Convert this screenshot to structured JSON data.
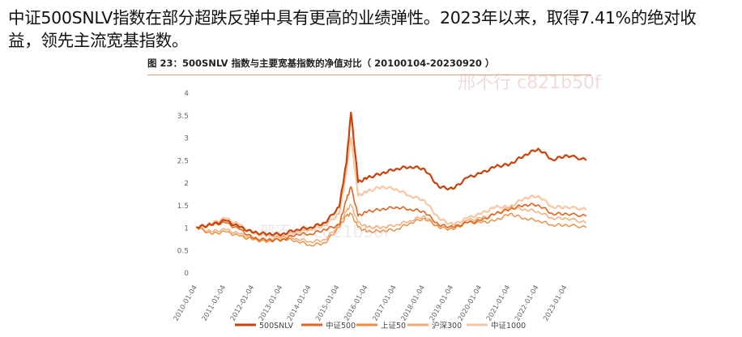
{
  "header": {
    "line1": "中证500SNLV指数在部分超跌反弹中具有更高的业绩弹性。2023年以来，取得7.41%的绝对收",
    "line2": "益，领先主流宽基指数。"
  },
  "chart_data": {
    "type": "line",
    "title": "图 23：500SNLV 指数与主要宽基指数的净值对比（ 20100104-20230920 ）",
    "ylim": [
      0,
      4
    ],
    "yticks": [
      "0",
      "0.5",
      "1",
      "1.5",
      "2",
      "2.5",
      "3",
      "3.5",
      "4"
    ],
    "xticks": [
      "2010-01-04",
      "2011-01-04",
      "2012-01-04",
      "2013-01-04",
      "2014-01-04",
      "2015-01-04",
      "2016-01-04",
      "2017-01-04",
      "2018-01-04",
      "2019-01-04",
      "2020-01-04",
      "2021-01-04",
      "2022-01-04",
      "2023-01-04"
    ],
    "x": [
      "2010-01",
      "2010-07",
      "2011-01",
      "2011-07",
      "2012-01",
      "2012-07",
      "2013-01",
      "2013-07",
      "2014-01",
      "2014-07",
      "2015-01",
      "2015-04",
      "2015-06",
      "2015-09",
      "2016-01",
      "2016-07",
      "2017-01",
      "2017-07",
      "2018-01",
      "2018-07",
      "2019-01",
      "2019-07",
      "2020-01",
      "2020-07",
      "2021-01",
      "2021-07",
      "2022-01",
      "2022-07",
      "2023-01",
      "2023-09"
    ],
    "legend_position": "bottom",
    "series": [
      {
        "name": "500SNLV",
        "color": "#c8420a",
        "width": 2.2,
        "values": [
          1.0,
          1.05,
          1.15,
          1.0,
          0.88,
          0.85,
          0.85,
          0.95,
          1.0,
          1.1,
          1.45,
          2.4,
          3.55,
          2.0,
          2.1,
          2.2,
          2.3,
          2.35,
          2.3,
          1.9,
          1.85,
          2.1,
          2.2,
          2.35,
          2.4,
          2.6,
          2.75,
          2.5,
          2.6,
          2.5
        ]
      },
      {
        "name": "中证500",
        "color": "#e0651e",
        "width": 1.6,
        "values": [
          1.0,
          1.05,
          1.1,
          0.95,
          0.75,
          0.72,
          0.72,
          0.85,
          0.85,
          0.95,
          1.05,
          1.6,
          1.9,
          1.25,
          1.35,
          1.4,
          1.45,
          1.4,
          1.35,
          1.05,
          1.0,
          1.1,
          1.15,
          1.3,
          1.4,
          1.5,
          1.5,
          1.3,
          1.3,
          1.25
        ]
      },
      {
        "name": "上证50",
        "color": "#ef8a3c",
        "width": 1.4,
        "values": [
          1.0,
          0.85,
          0.9,
          0.8,
          0.72,
          0.68,
          0.75,
          0.7,
          0.6,
          0.65,
          1.0,
          1.25,
          1.3,
          1.0,
          0.9,
          0.92,
          0.95,
          1.1,
          1.2,
          1.0,
          0.95,
          1.1,
          1.1,
          1.15,
          1.3,
          1.2,
          1.15,
          1.05,
          1.05,
          1.0
        ]
      },
      {
        "name": "沪深300",
        "color": "#f4a970",
        "width": 1.4,
        "values": [
          1.0,
          0.9,
          0.95,
          0.85,
          0.75,
          0.72,
          0.8,
          0.75,
          0.68,
          0.72,
          1.05,
          1.35,
          1.5,
          1.1,
          1.0,
          1.0,
          1.05,
          1.15,
          1.25,
          1.0,
          0.95,
          1.15,
          1.2,
          1.3,
          1.45,
          1.4,
          1.35,
          1.2,
          1.2,
          1.1
        ]
      },
      {
        "name": "中证1000",
        "color": "#f7c7a3",
        "width": 2.2,
        "values": [
          1.0,
          1.08,
          1.2,
          1.05,
          0.85,
          0.82,
          0.8,
          0.9,
          0.95,
          1.05,
          1.3,
          2.2,
          3.0,
          1.7,
          1.8,
          1.9,
          1.85,
          1.7,
          1.6,
          1.2,
          1.05,
          1.2,
          1.3,
          1.45,
          1.45,
          1.65,
          1.7,
          1.45,
          1.45,
          1.4
        ]
      }
    ]
  },
  "watermark": {
    "top": "邢不行 c821b50f",
    "middle": "邢不行 c821b50f"
  }
}
